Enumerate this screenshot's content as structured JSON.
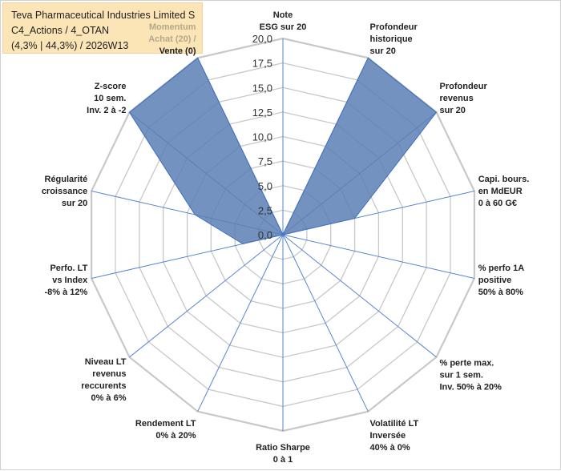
{
  "info": {
    "line1": "Teva Pharmaceutical Industries Limited S",
    "line2": "C4_Actions / 4_OTAN",
    "line3": "(4,3% | 44,3%) / 2026W13"
  },
  "colors": {
    "fill": "#5b7fb4",
    "stroke": "#3f6fbf",
    "grid": "#c8c8c8",
    "spoke": "#5a86d0",
    "box": "#fbe5b6"
  },
  "chart_data": {
    "type": "radar",
    "axis_min": 0,
    "axis_max": 20,
    "tick_labels": [
      "0,0",
      "2,5",
      "5,0",
      "7,5",
      "10,0",
      "12,5",
      "15,0",
      "17,5",
      "20,0"
    ],
    "axes": [
      {
        "lines": [
          "Note",
          "ESG sur 20"
        ],
        "value": 0
      },
      {
        "lines": [
          "Profondeur",
          "historique",
          "sur 20"
        ],
        "value": 20
      },
      {
        "lines": [
          "Profondeur",
          "revenus",
          "sur 20"
        ],
        "value": 20
      },
      {
        "lines": [
          "Capi. bours.",
          "en MdEUR",
          "0 à 60 G€"
        ],
        "value": 7.5
      },
      {
        "lines": [
          "% perfo 1A",
          "positive",
          "50% à 80%"
        ],
        "value": 0
      },
      {
        "lines": [
          "% perte max.",
          "sur 1 sem.",
          "Inv. 50% à 20%"
        ],
        "value": 0
      },
      {
        "lines": [
          "Volatilité LT",
          "Inversée",
          "40% à 0%"
        ],
        "value": 0
      },
      {
        "lines": [
          "Ratio Sharpe",
          "0 à 1"
        ],
        "value": 0
      },
      {
        "lines": [
          "Rendement LT",
          "0% à 20%"
        ],
        "value": 0
      },
      {
        "lines": [
          "Niveau LT",
          "revenus",
          "reccurents",
          "0% à 6%"
        ],
        "value": 0
      },
      {
        "lines": [
          "Perfo. LT",
          "vs Index",
          "-8% à 12%"
        ],
        "value": 4.2
      },
      {
        "lines": [
          "Régularité",
          "croissance",
          "sur 20"
        ],
        "value": 9.2
      },
      {
        "lines": [
          "Z-score",
          "10 sem.",
          "Inv. 2 à -2"
        ],
        "value": 20
      },
      {
        "lines": [
          "Momentum",
          "Achat (20) /",
          "Vente (0)"
        ],
        "value": 20
      }
    ]
  }
}
